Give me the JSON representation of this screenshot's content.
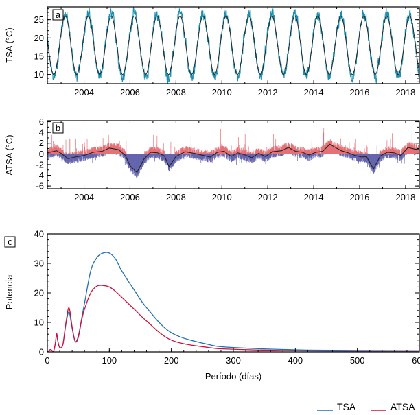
{
  "colors": {
    "tsa_line": "#1f6fb5",
    "atsa_line": "#d0103a",
    "tsa_panel_line": "#1a8fb0",
    "smooth_line": "#222222",
    "positive_fill": "#e0575e",
    "negative_fill": "#4a4aa0"
  },
  "legend": [
    {
      "label": "TSA",
      "color": "#1f6fb5"
    },
    {
      "label": "ATSA",
      "color": "#d0103a"
    }
  ],
  "chart_data": [
    {
      "id": "a",
      "panel_label": "a",
      "type": "line",
      "ylabel": "TSA (°C)",
      "xlabel": "",
      "xlim": [
        2002.4,
        2018.6
      ],
      "ylim": [
        7.5,
        28.5
      ],
      "yticks": [
        10,
        15,
        20,
        25
      ],
      "xticks": [
        "2004",
        "2006",
        "2008",
        "2010",
        "2012",
        "2014",
        "2016",
        "2018"
      ],
      "series": [
        {
          "kind": "seasonal",
          "mean": 18,
          "amplitude": 8.5,
          "peak_phase": 0.18,
          "noise": 1.4,
          "role": "daily"
        },
        {
          "kind": "seasonal",
          "mean": 18,
          "amplitude": 8,
          "peak_phase": 0.18,
          "noise": 0,
          "role": "climatology"
        }
      ],
      "grid": false
    },
    {
      "id": "b",
      "panel_label": "b",
      "type": "area",
      "ylabel": "ATSA (°C)",
      "xlabel": "",
      "xlim": [
        2002.4,
        2018.6
      ],
      "ylim": [
        -6.5,
        6.2
      ],
      "yticks": [
        -6,
        -4,
        -2,
        0,
        2,
        4,
        6
      ],
      "xticks": [
        "2004",
        "2006",
        "2008",
        "2010",
        "2012",
        "2014",
        "2016",
        "2018"
      ],
      "smoothed_anomaly": {
        "x": [
          2002.4,
          2002.8,
          2003.0,
          2003.3,
          2003.6,
          2004.0,
          2004.4,
          2004.8,
          2005.1,
          2005.5,
          2005.8,
          2006.0,
          2006.3,
          2006.6,
          2006.9,
          2007.2,
          2007.5,
          2007.7,
          2008.0,
          2008.4,
          2008.8,
          2009.2,
          2009.5,
          2009.8,
          2010.1,
          2010.4,
          2010.7,
          2011.0,
          2011.3,
          2011.6,
          2011.9,
          2012.2,
          2012.6,
          2012.9,
          2013.2,
          2013.5,
          2013.8,
          2014.1,
          2014.4,
          2014.7,
          2014.9,
          2015.2,
          2015.5,
          2015.8,
          2016.1,
          2016.3,
          2016.6,
          2016.9,
          2017.2,
          2017.5,
          2017.8,
          2018.1,
          2018.4,
          2018.6
        ],
        "y": [
          0.2,
          0.6,
          0.1,
          -0.9,
          -0.6,
          -0.3,
          0.3,
          0.5,
          1.1,
          0.8,
          -0.3,
          -2.2,
          -3.5,
          -1.0,
          0.3,
          0.2,
          -0.4,
          -2.4,
          -0.5,
          0.4,
          0.1,
          -0.3,
          -0.6,
          0.3,
          0.5,
          -0.5,
          0.2,
          -0.2,
          -0.7,
          0.1,
          -0.5,
          0.4,
          0.6,
          1.2,
          0.5,
          0.3,
          -0.2,
          0.3,
          0.5,
          1.8,
          1.3,
          0.6,
          0.2,
          -0.3,
          -0.6,
          -0.5,
          -2.8,
          -0.4,
          0.3,
          0.2,
          -0.3,
          1.2,
          0.9,
          0.8
        ]
      },
      "grid": false
    },
    {
      "id": "c",
      "panel_label": "c",
      "type": "line",
      "ylabel": "Potencia",
      "xlabel": "Período (días)",
      "xlim": [
        0,
        600
      ],
      "ylim": [
        0,
        40
      ],
      "yticks": [
        0,
        10,
        20,
        30,
        40
      ],
      "xticks": [
        0,
        100,
        200,
        300,
        400,
        500,
        600
      ],
      "series": [
        {
          "name": "TSA",
          "x": [
            0,
            5,
            10,
            13,
            15,
            17,
            20,
            25,
            30,
            35,
            40,
            45,
            50,
            55,
            60,
            70,
            80,
            90,
            100,
            110,
            120,
            140,
            160,
            200,
            260,
            300,
            400,
            500,
            600
          ],
          "y": [
            0,
            0.8,
            0.3,
            3.0,
            6.0,
            3.5,
            1.5,
            2.5,
            9.5,
            13.5,
            8.0,
            3.5,
            5.5,
            11.0,
            16.5,
            27.5,
            32.0,
            33.5,
            33.5,
            31.5,
            27.5,
            21.0,
            15.0,
            6.5,
            2.5,
            1.5,
            0.7,
            0.5,
            0.4
          ]
        },
        {
          "name": "ATSA",
          "x": [
            0,
            5,
            10,
            13,
            15,
            17,
            20,
            25,
            30,
            35,
            40,
            45,
            50,
            55,
            60,
            70,
            80,
            90,
            100,
            110,
            120,
            140,
            160,
            200,
            260,
            300,
            400,
            500,
            600
          ],
          "y": [
            0,
            0.8,
            0.3,
            3.0,
            6.2,
            3.5,
            1.5,
            2.5,
            10.0,
            15.0,
            8.5,
            3.5,
            5.0,
            10.5,
            14.5,
            20.0,
            22.3,
            22.5,
            22.0,
            20.5,
            18.5,
            14.5,
            10.5,
            4.0,
            1.5,
            0.9,
            0.4,
            0.3,
            0.3
          ]
        }
      ],
      "legend_position": "bottom-right",
      "grid": false
    }
  ]
}
